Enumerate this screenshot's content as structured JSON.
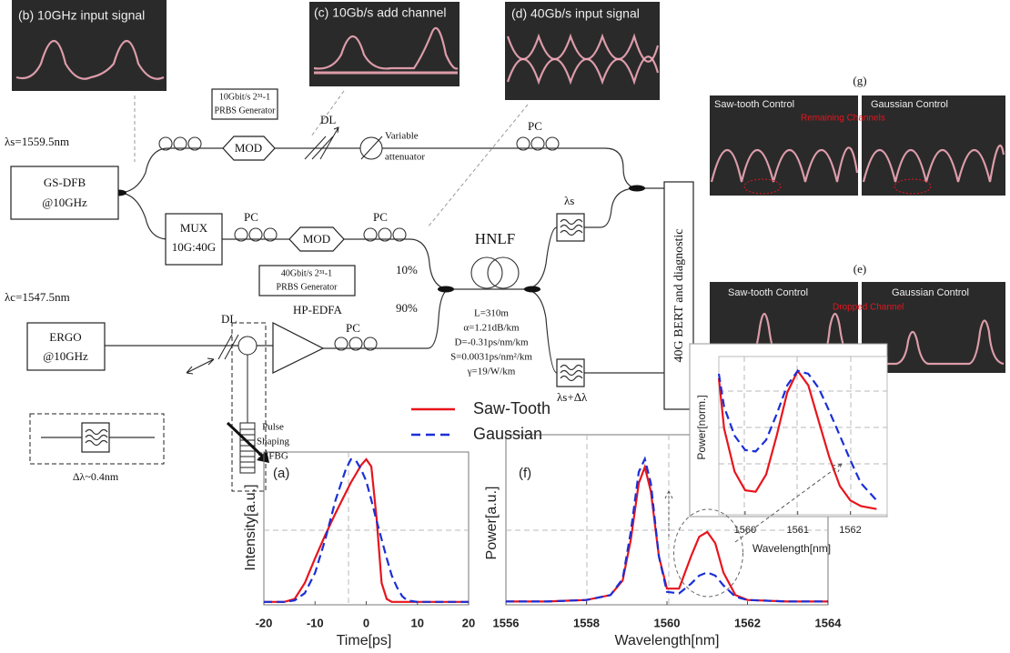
{
  "diagram": {
    "panel_b": "(b)  10GHz input signal",
    "panel_c": "(c)  10Gb/s add channel",
    "panel_d": "(d)  40Gb/s input signal",
    "prbs10_a": "10Gbit/s 2³¹-1",
    "prbs10_b": "PRBS Generator",
    "lambda_s": "λs=1559.5nm",
    "gsdfb_a": "GS-DFB",
    "gsdfb_b": "@10GHz",
    "mod_top": "MOD",
    "dl_top": "DL",
    "att_a": "Variable",
    "att_b": "attenuator",
    "pc_top": "PC",
    "mux_a": "MUX",
    "mux_b": "10G:40G",
    "pc_mid1": "PC",
    "mod_mid": "MOD",
    "pc_mid2": "PC",
    "prbs40_a": "40Gbit/s 2³¹-1",
    "prbs40_b": "PRBS Generator",
    "pct10": "10%",
    "pct90": "90%",
    "hnlf": "HNLF",
    "hnlf_l": "L=310m",
    "hnlf_a": "α=1.21dB/km",
    "hnlf_d": "D=-0.31ps/nm/km",
    "hnlf_s": "S=0.0031ps/nm²/km",
    "hnlf_g": "γ=19/W/km",
    "filt_s": "λs",
    "filt_sd": "λs+Δλ",
    "bert": "40G BERT and diagnostic",
    "lambda_c": "λc=1547.5nm",
    "ergo_a": "ERGO",
    "ergo_b": "@10GHz",
    "dl_bot": "DL",
    "edfa": "HP-EDFA",
    "pc_bot": "PC",
    "pulse_a": "Pulse",
    "pulse_b": "Shaping",
    "pulse_c": "SSFBG",
    "dlambda": "Δλ~0.4nm",
    "panel_g": "(g)",
    "g_left": "Saw-tooth Control",
    "g_right": "Gaussian Control",
    "g_note": "Remaining Channels",
    "panel_e": "(e)",
    "e_left": "Saw-tooth Control",
    "e_right": "Gaussian Control",
    "e_note": "Dropped Channel"
  },
  "chart_data": [
    {
      "type": "line",
      "panel_label": "(a)",
      "xlabel": "Time[ps]",
      "ylabel": "Intensity[a.u.]",
      "xlim": [
        -20,
        20
      ],
      "ylim": [
        0,
        1.05
      ],
      "xticks": [
        -20,
        -10,
        0,
        10,
        20
      ],
      "x": [
        -20,
        -16,
        -14,
        -12,
        -10,
        -8,
        -6,
        -4,
        -3,
        -2,
        -1,
        0,
        1,
        2,
        3,
        4,
        5,
        6,
        7,
        8,
        10,
        14,
        20
      ],
      "series": [
        {
          "color": "#e8141c",
          "line_style": "solid",
          "values": [
            0.02,
            0.02,
            0.04,
            0.15,
            0.32,
            0.48,
            0.63,
            0.77,
            0.84,
            0.9,
            0.96,
            1.0,
            0.95,
            0.6,
            0.15,
            0.04,
            0.02,
            0.02,
            0.02,
            0.02,
            0.02,
            0.02,
            0.02
          ]
        },
        {
          "color": "#1a2fd6",
          "line_style": "dashed",
          "values": [
            0.02,
            0.02,
            0.03,
            0.08,
            0.22,
            0.45,
            0.72,
            0.93,
            1.0,
            0.99,
            0.93,
            0.85,
            0.72,
            0.58,
            0.45,
            0.32,
            0.2,
            0.12,
            0.06,
            0.03,
            0.02,
            0.02,
            0.02
          ]
        }
      ]
    },
    {
      "type": "line",
      "panel_label": "(f)",
      "xlabel": "Wavelength[nm]",
      "ylabel": "Power[a.u.]",
      "xlim": [
        1556,
        1564
      ],
      "ylim": [
        0,
        1.05
      ],
      "xticks": [
        1556,
        1558,
        1560,
        1562,
        1564
      ],
      "x": [
        1556,
        1557,
        1558,
        1558.6,
        1558.9,
        1559.1,
        1559.3,
        1559.45,
        1559.6,
        1559.8,
        1560,
        1560.3,
        1560.6,
        1560.8,
        1561,
        1561.2,
        1561.4,
        1561.7,
        1562,
        1563,
        1564
      ],
      "series": [
        {
          "name": "Saw-Tooth",
          "color": "#e8141c",
          "line_style": "solid",
          "values": [
            0.02,
            0.02,
            0.03,
            0.06,
            0.15,
            0.4,
            0.75,
            0.85,
            0.7,
            0.3,
            0.1,
            0.1,
            0.3,
            0.42,
            0.45,
            0.38,
            0.2,
            0.06,
            0.03,
            0.02,
            0.02
          ]
        },
        {
          "name": "Gaussian",
          "color": "#1a2fd6",
          "line_style": "dashed",
          "values": [
            0.02,
            0.02,
            0.03,
            0.06,
            0.16,
            0.45,
            0.82,
            0.9,
            0.75,
            0.3,
            0.08,
            0.07,
            0.13,
            0.18,
            0.2,
            0.18,
            0.12,
            0.05,
            0.03,
            0.02,
            0.02
          ]
        }
      ]
    },
    {
      "type": "line",
      "xlabel": "Wavelength[nm]",
      "ylabel": "Power[norm.]",
      "xlim": [
        1559.5,
        1562.7
      ],
      "ylim": [
        0,
        1.1
      ],
      "xticks": [
        1560,
        1561,
        1562
      ],
      "x": [
        1559.5,
        1559.6,
        1559.8,
        1560,
        1560.2,
        1560.4,
        1560.6,
        1560.8,
        1561,
        1561.2,
        1561.4,
        1561.6,
        1561.8,
        1562,
        1562.2,
        1562.5
      ],
      "series": [
        {
          "color": "#e8141c",
          "line_style": "solid",
          "values": [
            0.95,
            0.6,
            0.3,
            0.17,
            0.16,
            0.28,
            0.55,
            0.85,
            1.0,
            0.9,
            0.65,
            0.4,
            0.2,
            0.1,
            0.06,
            0.04
          ]
        },
        {
          "color": "#1a2fd6",
          "line_style": "dashed",
          "values": [
            0.98,
            0.75,
            0.55,
            0.45,
            0.44,
            0.52,
            0.7,
            0.9,
            1.0,
            0.98,
            0.88,
            0.72,
            0.55,
            0.38,
            0.22,
            0.1
          ]
        }
      ]
    }
  ]
}
